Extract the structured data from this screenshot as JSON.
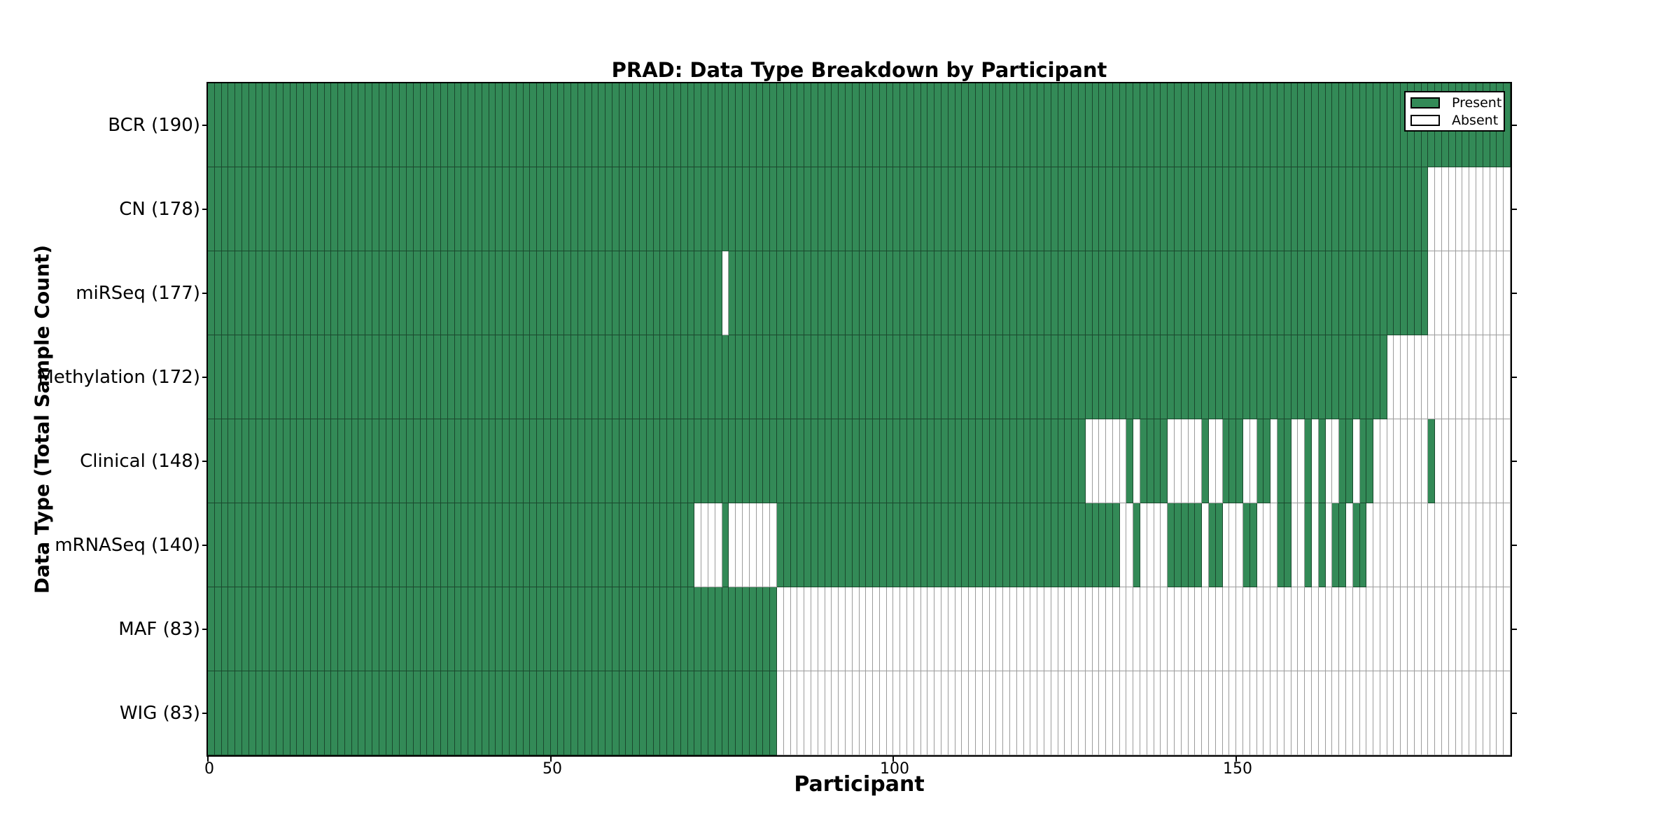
{
  "figure": {
    "title": "PRAD: Data Type Breakdown by Participant",
    "xlabel": "Participant",
    "ylabel": "Data Type (Total Sample Count)"
  },
  "legend": {
    "present_label": "Present",
    "absent_label": "Absent"
  },
  "colors": {
    "present": "#338a57",
    "absent": "#ffffff",
    "present_edge": "rgba(0,0,0,0.48)",
    "absent_edge": "#9c9c9c",
    "frame": "#000000"
  },
  "chart_data": {
    "type": "heatmap",
    "title": "PRAD: Data Type Breakdown by Participant",
    "xlabel": "Participant",
    "ylabel": "Data Type (Total Sample Count)",
    "legend_entries": [
      "Present",
      "Absent"
    ],
    "legend_position": "upper right",
    "grid": "per-cell outlines",
    "n_participants": 190,
    "x_ticks": [
      0,
      50,
      100,
      150
    ],
    "x_range": [
      0,
      190
    ],
    "value_encoding": {
      "present": 1,
      "absent": 0
    },
    "rows": [
      {
        "label": "BCR (190)",
        "data_type": "BCR",
        "count": 190,
        "absent_ranges": []
      },
      {
        "label": "CN (178)",
        "data_type": "CN",
        "count": 178,
        "absent_ranges": [
          [
            178,
            189
          ]
        ]
      },
      {
        "label": "miRSeq (177)",
        "data_type": "miRSeq",
        "count": 177,
        "absent_ranges": [
          [
            75,
            75
          ],
          [
            178,
            189
          ]
        ]
      },
      {
        "label": "Methylation (172)",
        "data_type": "Methylation",
        "count": 172,
        "absent_ranges": [
          [
            172,
            189
          ]
        ]
      },
      {
        "label": "Clinical (148)",
        "data_type": "Clinical",
        "count": 148,
        "absent_ranges": [
          [
            128,
            133
          ],
          [
            135,
            135
          ],
          [
            140,
            144
          ],
          [
            146,
            147
          ],
          [
            151,
            152
          ],
          [
            155,
            155
          ],
          [
            158,
            159
          ],
          [
            161,
            161
          ],
          [
            163,
            164
          ],
          [
            167,
            167
          ],
          [
            170,
            177
          ],
          [
            179,
            189
          ]
        ]
      },
      {
        "label": "mRNASeq (140)",
        "data_type": "mRNASeq",
        "count": 140,
        "absent_ranges": [
          [
            71,
            74
          ],
          [
            76,
            82
          ],
          [
            133,
            134
          ],
          [
            136,
            139
          ],
          [
            145,
            145
          ],
          [
            148,
            150
          ],
          [
            153,
            155
          ],
          [
            158,
            159
          ],
          [
            161,
            161
          ],
          [
            163,
            163
          ],
          [
            166,
            166
          ],
          [
            169,
            189
          ]
        ]
      },
      {
        "label": "MAF (83)",
        "data_type": "MAF",
        "count": 83,
        "absent_ranges": [
          [
            83,
            189
          ]
        ]
      },
      {
        "label": "WIG (83)",
        "data_type": "WIG",
        "count": 83,
        "absent_ranges": [
          [
            83,
            189
          ]
        ]
      }
    ]
  }
}
